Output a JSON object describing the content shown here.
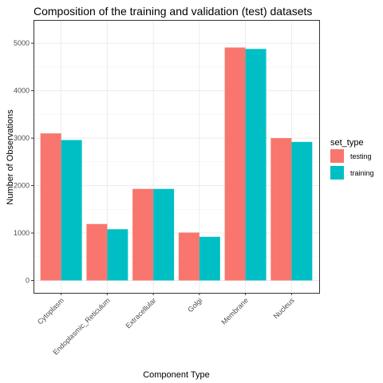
{
  "chart_data": {
    "type": "bar",
    "title": "Composition of the training and validation (test) datasets",
    "xlabel": "Component Type",
    "ylabel": "Number of Observations",
    "categories": [
      "Cytoplasm",
      "Endoplasmic_Reticulum",
      "Extracellular",
      "Golgi",
      "Membrane",
      "Nucleus"
    ],
    "series": [
      {
        "name": "testing",
        "color": "#F8766D",
        "values": [
          3100,
          1190,
          1930,
          1010,
          4910,
          3000
        ]
      },
      {
        "name": "training",
        "color": "#00BFC4",
        "values": [
          2960,
          1080,
          1930,
          920,
          4880,
          2920
        ]
      }
    ],
    "ylim": [
      0,
      5230
    ],
    "yticks": [
      0,
      1000,
      2000,
      3000,
      4000,
      5000
    ],
    "legend": {
      "title": "set_type",
      "position": "right"
    },
    "grid": true,
    "theme": "black-and-white"
  }
}
